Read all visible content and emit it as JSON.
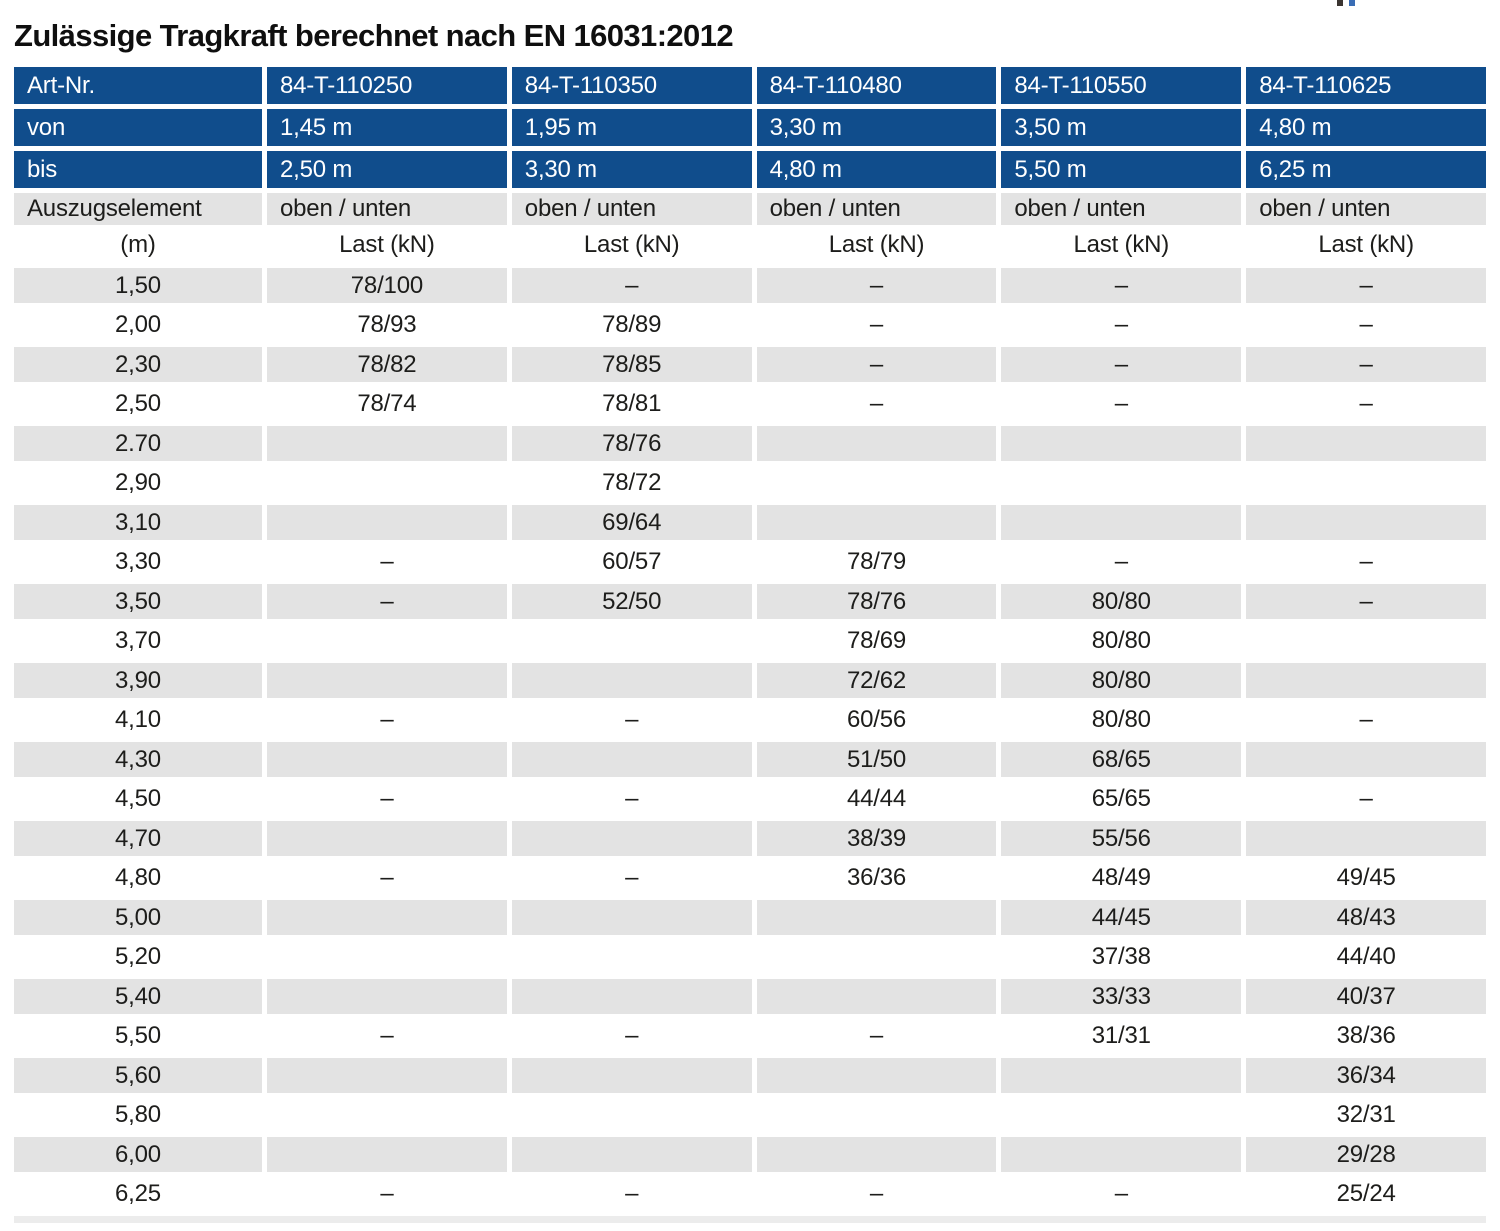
{
  "title": "Zulässige Tragkraft berechnet nach EN 16031:2012",
  "colors": {
    "header_blue": "#104d8c",
    "row_gray": "#e3e3e3",
    "text_dark": "#1d1d1b",
    "strip_gray": "#ececec"
  },
  "table": {
    "header_rows": [
      {
        "style": "blue",
        "label": "Art-Nr.",
        "values": [
          "84-T-110250",
          "84-T-110350",
          "84-T-110480",
          "84-T-110550",
          "84-T-110625"
        ]
      },
      {
        "style": "blue",
        "label": "von",
        "values": [
          "1,45 m",
          "1,95 m",
          "3,30 m",
          "3,50 m",
          "4,80 m"
        ]
      },
      {
        "style": "blue",
        "label": "bis",
        "values": [
          "2,50 m",
          "3,30 m",
          "4,80 m",
          "5,50 m",
          "6,25 m"
        ]
      },
      {
        "style": "gray",
        "label": "Auszugselement",
        "values": [
          "oben / unten",
          "oben / unten",
          "oben / unten",
          "oben / unten",
          "oben / unten"
        ]
      },
      {
        "style": "units",
        "label": "(m)",
        "values": [
          "Last (kN)",
          "Last (kN)",
          "Last (kN)",
          "Last (kN)",
          "Last (kN)"
        ]
      }
    ],
    "rows": [
      {
        "m": "1,50",
        "values": [
          "78/100",
          "–",
          "–",
          "–",
          "–"
        ]
      },
      {
        "m": "2,00",
        "values": [
          "78/93",
          "78/89",
          "–",
          "–",
          "–"
        ]
      },
      {
        "m": "2,30",
        "values": [
          "78/82",
          "78/85",
          "–",
          "–",
          "–"
        ]
      },
      {
        "m": "2,50",
        "values": [
          "78/74",
          "78/81",
          "–",
          "–",
          "–"
        ]
      },
      {
        "m": "2.70",
        "values": [
          "",
          "78/76",
          "",
          "",
          ""
        ]
      },
      {
        "m": "2,90",
        "values": [
          "",
          "78/72",
          "",
          "",
          ""
        ]
      },
      {
        "m": "3,10",
        "values": [
          "",
          "69/64",
          "",
          "",
          ""
        ]
      },
      {
        "m": "3,30",
        "values": [
          "–",
          "60/57",
          "78/79",
          "–",
          "–"
        ]
      },
      {
        "m": "3,50",
        "values": [
          "–",
          "52/50",
          "78/76",
          "80/80",
          "–"
        ]
      },
      {
        "m": "3,70",
        "values": [
          "",
          "",
          "78/69",
          "80/80",
          ""
        ]
      },
      {
        "m": "3,90",
        "values": [
          "",
          "",
          "72/62",
          "80/80",
          ""
        ]
      },
      {
        "m": "4,10",
        "values": [
          "–",
          "–",
          "60/56",
          "80/80",
          "–"
        ]
      },
      {
        "m": "4,30",
        "values": [
          "",
          "",
          "51/50",
          "68/65",
          ""
        ]
      },
      {
        "m": "4,50",
        "values": [
          "–",
          "–",
          "44/44",
          "65/65",
          "–"
        ]
      },
      {
        "m": "4,70",
        "values": [
          "",
          "",
          "38/39",
          "55/56",
          ""
        ]
      },
      {
        "m": "4,80",
        "values": [
          "–",
          "–",
          "36/36",
          "48/49",
          "49/45"
        ]
      },
      {
        "m": "5,00",
        "values": [
          "",
          "",
          "",
          "44/45",
          "48/43"
        ]
      },
      {
        "m": "5,20",
        "values": [
          "",
          "",
          "",
          "37/38",
          "44/40"
        ]
      },
      {
        "m": "5,40",
        "values": [
          "",
          "",
          "",
          "33/33",
          "40/37"
        ]
      },
      {
        "m": "5,50",
        "values": [
          "–",
          "–",
          "–",
          "31/31",
          "38/36"
        ]
      },
      {
        "m": "5,60",
        "values": [
          "",
          "",
          "",
          "",
          "36/34"
        ]
      },
      {
        "m": "5,80",
        "values": [
          "",
          "",
          "",
          "",
          "32/31"
        ]
      },
      {
        "m": "6,00",
        "values": [
          "",
          "",
          "",
          "",
          "29/28"
        ]
      },
      {
        "m": "6,25",
        "values": [
          "–",
          "–",
          "–",
          "–",
          "25/24"
        ]
      }
    ]
  }
}
